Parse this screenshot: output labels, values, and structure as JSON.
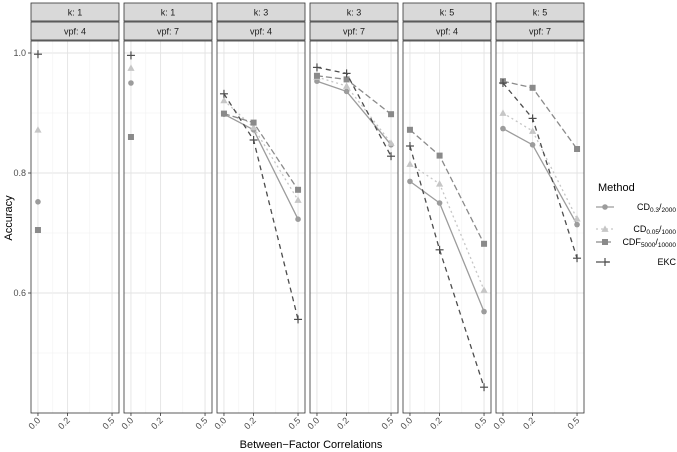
{
  "chart_data": {
    "type": "line",
    "xlabel": "Between−Factor Correlations",
    "ylabel": "Accuracy",
    "x_ticks": [
      "0.0",
      "0.2",
      "0.5"
    ],
    "x_ticks_last_panel": [
      "0.0",
      "0.2",
      "0.5"
    ],
    "y_ticks": [
      "0.6",
      "0.8",
      "1.0"
    ],
    "ylim": [
      0.4,
      1.02
    ],
    "grid": true,
    "legend": {
      "title": "Method",
      "placement": "right",
      "entries": [
        {
          "key": "cd03",
          "main": "CD",
          "sub": "0.3",
          "sep": "/",
          "sub2": "2000"
        },
        {
          "key": "cd005",
          "main": "CD",
          "sub": "0.05",
          "sep": "/",
          "sub2": "1000"
        },
        {
          "key": "cdf",
          "main": "CDF",
          "sub": "5000",
          "sep": "/",
          "sub2": "10000"
        },
        {
          "key": "ekc",
          "main": "EKC",
          "sub": "",
          "sep": "",
          "sub2": ""
        }
      ]
    },
    "panels": [
      {
        "k_label": "k: 1",
        "vpf_label": "vpf: 4",
        "x": [
          0.0
        ],
        "series": [
          {
            "key": "cd03",
            "values": [
              0.752
            ]
          },
          {
            "key": "cd005",
            "values": [
              0.872
            ]
          },
          {
            "key": "cdf",
            "values": [
              0.705
            ]
          },
          {
            "key": "ekc",
            "values": [
              0.998
            ]
          }
        ]
      },
      {
        "k_label": "k: 1",
        "vpf_label": "vpf: 7",
        "x": [
          0.0
        ],
        "series": [
          {
            "key": "cd03",
            "values": [
              0.95
            ]
          },
          {
            "key": "cd005",
            "values": [
              0.975
            ]
          },
          {
            "key": "cdf",
            "values": [
              0.86
            ]
          },
          {
            "key": "ekc",
            "values": [
              0.996
            ]
          }
        ]
      },
      {
        "k_label": "k: 3",
        "vpf_label": "vpf: 4",
        "x": [
          0.0,
          0.2,
          0.5
        ],
        "series": [
          {
            "key": "cd03",
            "values": [
              0.898,
              0.872,
              0.723
            ]
          },
          {
            "key": "cd005",
            "values": [
              0.921,
              0.876,
              0.755
            ]
          },
          {
            "key": "cdf",
            "values": [
              0.899,
              0.884,
              0.772
            ]
          },
          {
            "key": "ekc",
            "values": [
              0.932,
              0.855,
              0.556
            ]
          }
        ]
      },
      {
        "k_label": "k: 3",
        "vpf_label": "vpf: 7",
        "x": [
          0.0,
          0.2,
          0.5
        ],
        "series": [
          {
            "key": "cd03",
            "values": [
              0.953,
              0.936,
              0.847
            ]
          },
          {
            "key": "cd005",
            "values": [
              0.96,
              0.945,
              0.85
            ]
          },
          {
            "key": "cdf",
            "values": [
              0.962,
              0.956,
              0.898
            ]
          },
          {
            "key": "ekc",
            "values": [
              0.976,
              0.966,
              0.828
            ]
          }
        ]
      },
      {
        "k_label": "k: 5",
        "vpf_label": "vpf: 4",
        "x": [
          0.0,
          0.2,
          0.5
        ],
        "series": [
          {
            "key": "cd03",
            "values": [
              0.786,
              0.75,
              0.569
            ]
          },
          {
            "key": "cd005",
            "values": [
              0.815,
              0.782,
              0.605
            ]
          },
          {
            "key": "cdf",
            "values": [
              0.872,
              0.829,
              0.682
            ]
          },
          {
            "key": "ekc",
            "values": [
              0.845,
              0.672,
              0.443
            ]
          }
        ]
      },
      {
        "k_label": "k: 5",
        "vpf_label": "vpf: 7",
        "x": [
          0.0,
          0.2,
          0.5
        ],
        "series": [
          {
            "key": "cd03",
            "values": [
              0.874,
              0.847,
              0.714
            ]
          },
          {
            "key": "cd005",
            "values": [
              0.9,
              0.87,
              0.724
            ]
          },
          {
            "key": "cdf",
            "values": [
              0.953,
              0.942,
              0.84
            ]
          },
          {
            "key": "ekc",
            "values": [
              0.95,
              0.891,
              0.658
            ]
          }
        ]
      }
    ],
    "series_styles": {
      "cd03": {
        "color": "#9c9c9c",
        "dash": "",
        "shape": "circle"
      },
      "cd005": {
        "color": "#c6c6c6",
        "dash": "2,3",
        "shape": "triangle"
      },
      "cdf": {
        "color": "#8a8a8a",
        "dash": "6,3",
        "shape": "square"
      },
      "ekc": {
        "color": "#4d4d4d",
        "dash": "5,4",
        "shape": "plus"
      }
    }
  }
}
